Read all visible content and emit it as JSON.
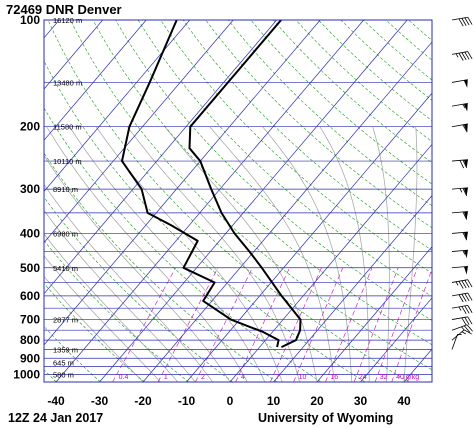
{
  "title": "72469 DNR Denver",
  "footer_left": "12Z 24 Jan 2017",
  "footer_right": "University of Wyoming",
  "colors": {
    "isobar": "#2b2bb5",
    "isotherm": "#2b2bb5",
    "dry_adiabat": "#1a9a1a",
    "moist_adiabat": "#a0a0a0",
    "mixing_ratio": "#cc00cc",
    "profile": "#000000"
  },
  "chart_data": {
    "type": "line",
    "chart_kind": "skew-T log-P",
    "x_ticks": [
      "-40",
      "-30",
      "-20",
      "-10",
      "0",
      "10",
      "20",
      "30",
      "40"
    ],
    "y_ticks": [
      "100",
      "200",
      "300",
      "400",
      "500",
      "600",
      "700",
      "800",
      "900",
      "1000"
    ],
    "xlim": [
      -40,
      45
    ],
    "ylim": [
      1050,
      100
    ],
    "height_labels": [
      {
        "p": 100,
        "text": "16120 m"
      },
      {
        "p": 150,
        "text": "13480 m"
      },
      {
        "p": 200,
        "text": "11580 m"
      },
      {
        "p": 250,
        "text": "10110 m"
      },
      {
        "p": 300,
        "text": "8910 m"
      },
      {
        "p": 400,
        "text": "6980 m"
      },
      {
        "p": 500,
        "text": "5410 m"
      },
      {
        "p": 700,
        "text": "2877 m"
      },
      {
        "p": 850,
        "text": "1359 m"
      },
      {
        "p": 925,
        "text": "645 m"
      },
      {
        "p": 1000,
        "text": "580 m"
      }
    ],
    "mixing_ratio_labels": [
      "0.4",
      "1",
      "2",
      "4",
      "7",
      "10",
      "16",
      "24",
      "32",
      "40 g/kg"
    ],
    "series": [
      {
        "points": [
          {
            "p": 837,
            "t": 5
          },
          {
            "p": 800,
            "t": 7
          },
          {
            "p": 750,
            "t": 6
          },
          {
            "p": 700,
            "t": 4
          },
          {
            "p": 600,
            "t": -5
          },
          {
            "p": 500,
            "t": -15
          },
          {
            "p": 450,
            "t": -21
          },
          {
            "p": 400,
            "t": -28
          },
          {
            "p": 350,
            "t": -35
          },
          {
            "p": 300,
            "t": -42
          },
          {
            "p": 250,
            "t": -50
          },
          {
            "p": 230,
            "t": -55
          },
          {
            "p": 200,
            "t": -59
          },
          {
            "p": 150,
            "t": -59
          },
          {
            "p": 100,
            "t": -59
          }
        ]
      },
      {
        "points": [
          {
            "p": 837,
            "t": 4
          },
          {
            "p": 800,
            "t": 3
          },
          {
            "p": 760,
            "t": -2
          },
          {
            "p": 700,
            "t": -12
          },
          {
            "p": 620,
            "t": -22
          },
          {
            "p": 550,
            "t": -23
          },
          {
            "p": 500,
            "t": -33
          },
          {
            "p": 420,
            "t": -35
          },
          {
            "p": 380,
            "t": -44
          },
          {
            "p": 350,
            "t": -52
          },
          {
            "p": 300,
            "t": -58
          },
          {
            "p": 250,
            "t": -68
          },
          {
            "p": 200,
            "t": -73
          },
          {
            "p": 150,
            "t": -77
          },
          {
            "p": 100,
            "t": -83
          }
        ]
      }
    ],
    "wind_barbs": [
      {
        "p": 850,
        "dir": 200,
        "spd": 5
      },
      {
        "p": 800,
        "dir": 230,
        "spd": 15
      },
      {
        "p": 750,
        "dir": 250,
        "spd": 25
      },
      {
        "p": 700,
        "dir": 260,
        "spd": 30
      },
      {
        "p": 650,
        "dir": 260,
        "spd": 35
      },
      {
        "p": 600,
        "dir": 260,
        "spd": 40
      },
      {
        "p": 550,
        "dir": 260,
        "spd": 45
      },
      {
        "p": 500,
        "dir": 265,
        "spd": 50
      },
      {
        "p": 450,
        "dir": 265,
        "spd": 55
      },
      {
        "p": 400,
        "dir": 265,
        "spd": 60
      },
      {
        "p": 350,
        "dir": 265,
        "spd": 60
      },
      {
        "p": 300,
        "dir": 265,
        "spd": 65
      },
      {
        "p": 250,
        "dir": 265,
        "spd": 70
      },
      {
        "p": 200,
        "dir": 260,
        "spd": 60
      },
      {
        "p": 175,
        "dir": 260,
        "spd": 55
      },
      {
        "p": 150,
        "dir": 260,
        "spd": 50
      },
      {
        "p": 125,
        "dir": 260,
        "spd": 45
      },
      {
        "p": 100,
        "dir": 260,
        "spd": 40
      }
    ]
  }
}
